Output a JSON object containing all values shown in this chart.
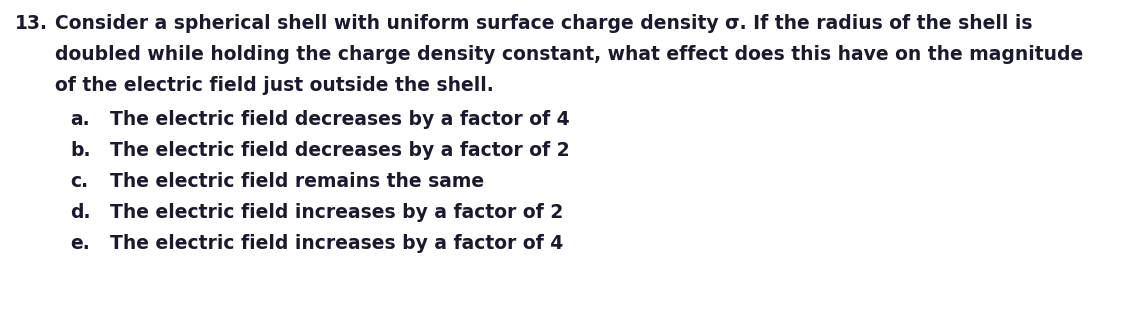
{
  "question_number": "13.",
  "question_line1": "Consider a spherical shell with uniform surface charge density σ. If the radius of the shell is",
  "question_line2": "doubled while holding the charge density constant, what effect does this have on the magnitude",
  "question_line3": "of the electric field just outside the shell.",
  "options": [
    {
      "label": "a.",
      "text": "The electric field decreases by a factor of 4"
    },
    {
      "label": "b.",
      "text": "The electric field decreases by a factor of 2"
    },
    {
      "label": "c.",
      "text": "The electric field remains the same"
    },
    {
      "label": "d.",
      "text": "The electric field increases by a factor of 2"
    },
    {
      "label": "e.",
      "text": "The electric field increases by a factor of 4"
    }
  ],
  "font_size": 13.5,
  "font_weight": "bold",
  "text_color": "#1a1a2e",
  "background_color": "#ffffff",
  "fig_width": 11.39,
  "fig_height": 3.09,
  "dpi": 100
}
